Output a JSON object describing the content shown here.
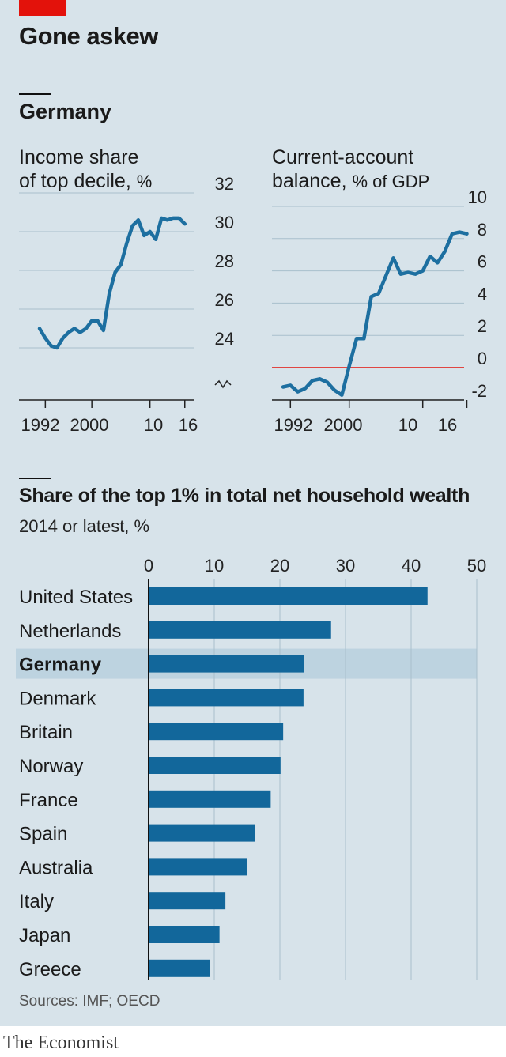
{
  "header": {
    "title": "Gone askew"
  },
  "section1": {
    "title": "Germany"
  },
  "section2": {
    "title": "Share of the top 1% in total net household wealth",
    "subtitle": "2014 or latest, %"
  },
  "sources": "Sources: IMF; OECD",
  "footer": "The Economist",
  "colors": {
    "line": "#1d6fa0",
    "bar": "#12679b",
    "highlight": "#bdd3e0",
    "zero_line": "#e3120b",
    "tag": "#e3120b"
  },
  "chart_data": [
    {
      "type": "line",
      "title_line1": "Income share",
      "title_line2": "of top decile,",
      "unit": "%",
      "x_ticks": [
        "1992",
        "2000",
        "10",
        "16"
      ],
      "y_ticks": [
        "32",
        "30",
        "28",
        "26",
        "24"
      ],
      "ylim": [
        22.5,
        32
      ],
      "xlim": [
        1989,
        2017
      ],
      "axis_break": true,
      "grid": true,
      "series": [
        {
          "x": [
            1991,
            1992,
            1993,
            1994,
            1995,
            1996,
            1997,
            1998,
            1999,
            2000,
            2001,
            2002,
            2003,
            2004,
            2005,
            2006,
            2007,
            2008,
            2009,
            2010,
            2011,
            2012,
            2013,
            2014,
            2015,
            2016
          ],
          "y": [
            25.0,
            24.5,
            24.1,
            24.0,
            24.5,
            24.8,
            25.0,
            24.8,
            25.0,
            25.4,
            25.4,
            24.9,
            26.8,
            27.9,
            28.3,
            29.4,
            30.3,
            30.6,
            29.8,
            30.0,
            29.6,
            30.7,
            30.6,
            30.7,
            30.7,
            30.4
          ]
        }
      ]
    },
    {
      "type": "line",
      "title_line1": "Current-account",
      "title_line2": "balance,",
      "unit": "% of GDP",
      "x_ticks": [
        "1992",
        "2000",
        "10",
        "16"
      ],
      "y_ticks": [
        "10",
        "8",
        "6",
        "4",
        "2",
        "0",
        "-2"
      ],
      "ylim": [
        -3,
        10
      ],
      "xlim": [
        1989,
        2019
      ],
      "zero_line": true,
      "grid": true,
      "series": [
        {
          "x": [
            1991,
            1992,
            1993,
            1994,
            1995,
            1996,
            1997,
            1998,
            1999,
            2000,
            2001,
            2002,
            2003,
            2004,
            2005,
            2006,
            2007,
            2008,
            2009,
            2010,
            2011,
            2012,
            2013,
            2014,
            2015,
            2016
          ],
          "y": [
            -1.2,
            -1.1,
            -1.5,
            -1.3,
            -0.8,
            -0.7,
            -0.9,
            -1.4,
            -1.7,
            0.1,
            1.8,
            1.8,
            4.4,
            4.6,
            5.7,
            6.8,
            5.8,
            5.9,
            5.8,
            6.0,
            6.9,
            6.5,
            7.2,
            8.3,
            8.4,
            8.3
          ]
        }
      ]
    },
    {
      "type": "bar",
      "orientation": "horizontal",
      "categories": [
        "United States",
        "Netherlands",
        "Germany",
        "Denmark",
        "Britain",
        "Norway",
        "France",
        "Spain",
        "Australia",
        "Italy",
        "Japan",
        "Greece"
      ],
      "values": [
        42.5,
        27.8,
        23.7,
        23.6,
        20.5,
        20.1,
        18.6,
        16.2,
        15.0,
        11.7,
        10.8,
        9.3
      ],
      "highlight": "Germany",
      "xlim": [
        0,
        50
      ],
      "x_ticks": [
        "0",
        "10",
        "20",
        "30",
        "40",
        "50"
      ],
      "grid": true
    }
  ]
}
